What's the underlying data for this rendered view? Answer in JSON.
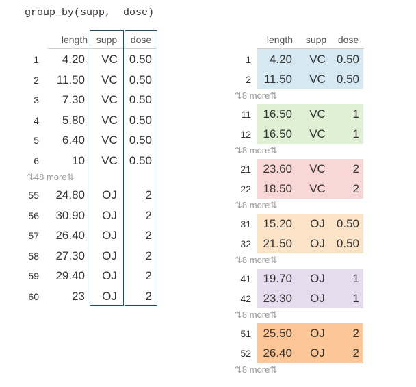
{
  "code": "group_by(supp,  dose)",
  "columns": [
    "length",
    "supp",
    "dose"
  ],
  "left": {
    "top_rows": [
      {
        "n": "1",
        "length": "4.20",
        "supp": "VC",
        "dose": "0.50"
      },
      {
        "n": "2",
        "length": "11.50",
        "supp": "VC",
        "dose": "0.50"
      },
      {
        "n": "3",
        "length": "7.30",
        "supp": "VC",
        "dose": "0.50"
      },
      {
        "n": "4",
        "length": "5.80",
        "supp": "VC",
        "dose": "0.50"
      },
      {
        "n": "5",
        "length": "6.40",
        "supp": "VC",
        "dose": "0.50"
      },
      {
        "n": "6",
        "length": "10",
        "supp": "VC",
        "dose": "0.50"
      }
    ],
    "more": "⇅48 more⇅",
    "bottom_rows": [
      {
        "n": "55",
        "length": "24.80",
        "supp": "OJ",
        "dose": "2"
      },
      {
        "n": "56",
        "length": "30.90",
        "supp": "OJ",
        "dose": "2"
      },
      {
        "n": "57",
        "length": "26.40",
        "supp": "OJ",
        "dose": "2"
      },
      {
        "n": "58",
        "length": "27.30",
        "supp": "OJ",
        "dose": "2"
      },
      {
        "n": "59",
        "length": "29.40",
        "supp": "OJ",
        "dose": "2"
      },
      {
        "n": "60",
        "length": "23",
        "supp": "OJ",
        "dose": "2"
      }
    ]
  },
  "right": {
    "more": "⇅8 more⇅",
    "groups": [
      {
        "color": "#d6e9f2",
        "rows": [
          {
            "n": "1",
            "length": "4.20",
            "supp": "VC",
            "dose": "0.50"
          },
          {
            "n": "2",
            "length": "11.50",
            "supp": "VC",
            "dose": "0.50"
          }
        ]
      },
      {
        "color": "#dff0d5",
        "rows": [
          {
            "n": "11",
            "length": "16.50",
            "supp": "VC",
            "dose": "1"
          },
          {
            "n": "12",
            "length": "16.50",
            "supp": "VC",
            "dose": "1"
          }
        ]
      },
      {
        "color": "#f8d7d6",
        "rows": [
          {
            "n": "21",
            "length": "23.60",
            "supp": "VC",
            "dose": "2"
          },
          {
            "n": "22",
            "length": "18.50",
            "supp": "VC",
            "dose": "2"
          }
        ]
      },
      {
        "color": "#fbe3c8",
        "rows": [
          {
            "n": "31",
            "length": "15.20",
            "supp": "OJ",
            "dose": "0.50"
          },
          {
            "n": "32",
            "length": "21.50",
            "supp": "OJ",
            "dose": "0.50"
          }
        ]
      },
      {
        "color": "#e6dced",
        "rows": [
          {
            "n": "41",
            "length": "19.70",
            "supp": "OJ",
            "dose": "1"
          },
          {
            "n": "42",
            "length": "23.30",
            "supp": "OJ",
            "dose": "1"
          }
        ]
      },
      {
        "color": "#fcc696",
        "rows": [
          {
            "n": "51",
            "length": "25.50",
            "supp": "OJ",
            "dose": "2"
          },
          {
            "n": "52",
            "length": "26.40",
            "supp": "OJ",
            "dose": "2"
          }
        ]
      }
    ]
  }
}
